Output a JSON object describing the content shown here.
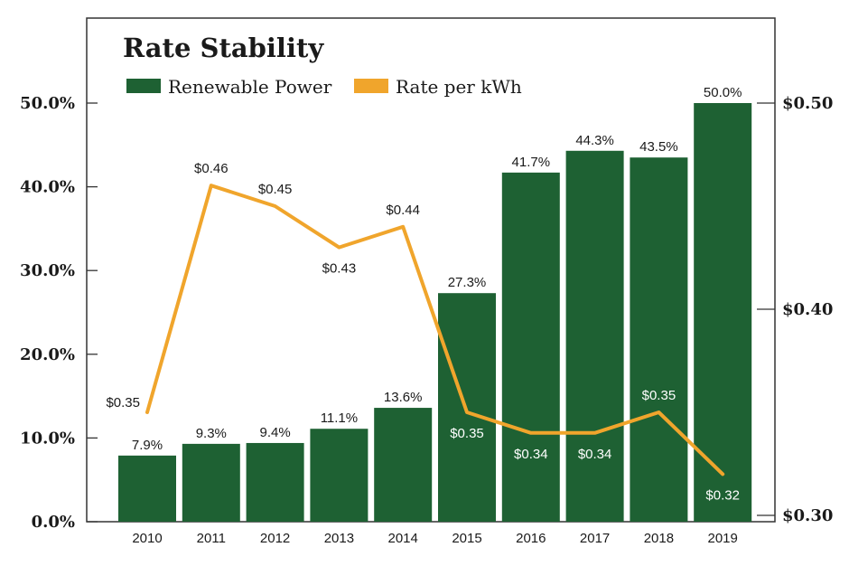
{
  "chart_data": {
    "type": "bar",
    "title": "Rate Stability",
    "categories": [
      "2010",
      "2011",
      "2012",
      "2013",
      "2014",
      "2015",
      "2016",
      "2017",
      "2018",
      "2019"
    ],
    "series": [
      {
        "name": "Renewable Power",
        "type": "bar",
        "axis": "left",
        "color": "#1e6133",
        "values": [
          7.9,
          9.3,
          9.4,
          11.1,
          13.6,
          27.3,
          41.7,
          44.3,
          43.5,
          50.0
        ],
        "labels": [
          "7.9%",
          "9.3%",
          "9.4%",
          "11.1%",
          "13.6%",
          "27.3%",
          "41.7%",
          "44.3%",
          "43.5%",
          "50.0%"
        ]
      },
      {
        "name": "Rate per kWh",
        "type": "line",
        "axis": "right",
        "color": "#f0a52c",
        "values": [
          0.35,
          0.46,
          0.45,
          0.43,
          0.44,
          0.35,
          0.34,
          0.34,
          0.35,
          0.32
        ],
        "labels": [
          "$0.35",
          "$0.46",
          "$0.45",
          "$0.43",
          "$0.44",
          "$0.35",
          "$0.34",
          "$0.34",
          "$0.35",
          "$0.32"
        ]
      }
    ],
    "y_left": {
      "ylim": [
        0,
        50
      ],
      "ticks": [
        0,
        10,
        20,
        30,
        40,
        50
      ],
      "tick_labels": [
        "0.0%",
        "10.0%",
        "20.0%",
        "30.0%",
        "40.0%",
        "50.0%"
      ]
    },
    "y_right": {
      "ylim": [
        0.3,
        0.5
      ],
      "ticks": [
        0.3,
        0.4,
        0.5
      ],
      "tick_labels": [
        "$0.30",
        "$0.40",
        "$0.50"
      ]
    },
    "legend": "top-left",
    "grid": false
  }
}
